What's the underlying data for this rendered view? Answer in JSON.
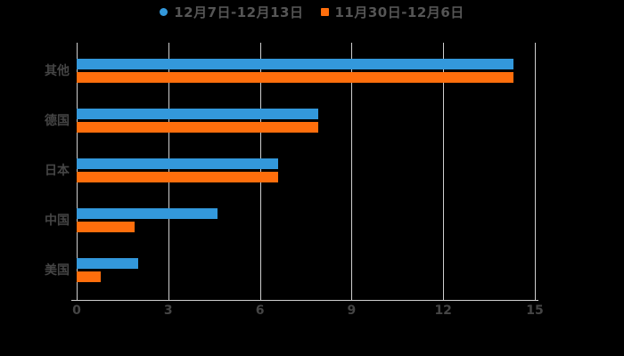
{
  "legend": {
    "items": [
      {
        "label": "12月7日-12月13日",
        "color": "#3398DB",
        "marker": "circle"
      },
      {
        "label": "11月30日-12月6日",
        "color": "#FF6E0C",
        "marker": "square"
      }
    ]
  },
  "chart_data": {
    "type": "bar",
    "orientation": "horizontal",
    "title": "",
    "xlabel": "",
    "ylabel": "",
    "categories": [
      "其他",
      "德国",
      "日本",
      "中国",
      "美国"
    ],
    "series": [
      {
        "name": "12月7日-12月13日",
        "color": "#3398DB",
        "values": [
          14.3,
          7.9,
          6.6,
          4.6,
          2.0
        ]
      },
      {
        "name": "11月30日-12月6日",
        "color": "#FF6E0C",
        "values": [
          14.3,
          7.9,
          6.6,
          1.9,
          0.8
        ]
      }
    ],
    "xlim": [
      0,
      15
    ],
    "x_ticks": [
      "0",
      "3",
      "6",
      "9",
      "12",
      "15"
    ],
    "grid": true,
    "legend_position": "top-center"
  },
  "colors": {
    "background": "#000000",
    "gridline": "#CFCFCF",
    "axis_text": "#454545",
    "legend_text": "#555555",
    "series_blue": "#3398DB",
    "series_orange": "#FF6E0C"
  }
}
